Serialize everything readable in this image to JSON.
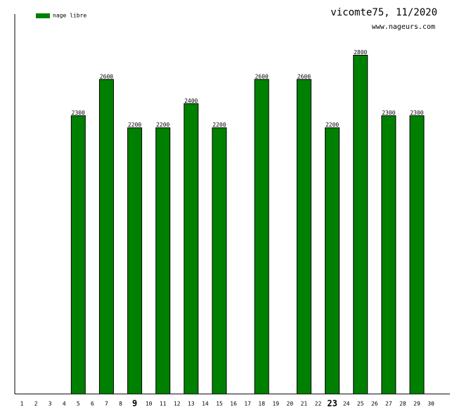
{
  "chart_data": {
    "type": "bar",
    "title": "vicomte75, 11/2020",
    "subtitle": "www.nageurs.com",
    "categories": [
      "1",
      "2",
      "3",
      "4",
      "5",
      "6",
      "7",
      "8",
      "9",
      "10",
      "11",
      "12",
      "13",
      "14",
      "15",
      "16",
      "17",
      "18",
      "19",
      "20",
      "21",
      "22",
      "23",
      "24",
      "25",
      "26",
      "27",
      "28",
      "29",
      "30"
    ],
    "series": [
      {
        "name": "nage libre",
        "color": "#008000",
        "values": [
          null,
          null,
          null,
          null,
          2300,
          null,
          2600,
          null,
          2200,
          null,
          2200,
          null,
          2400,
          null,
          2200,
          null,
          null,
          2600,
          null,
          null,
          2600,
          null,
          2200,
          null,
          2800,
          null,
          2300,
          null,
          2300,
          null
        ]
      }
    ],
    "ylim": [
      0,
      3140
    ],
    "bold_ticks": [
      8,
      22
    ],
    "legend": "top-left"
  }
}
